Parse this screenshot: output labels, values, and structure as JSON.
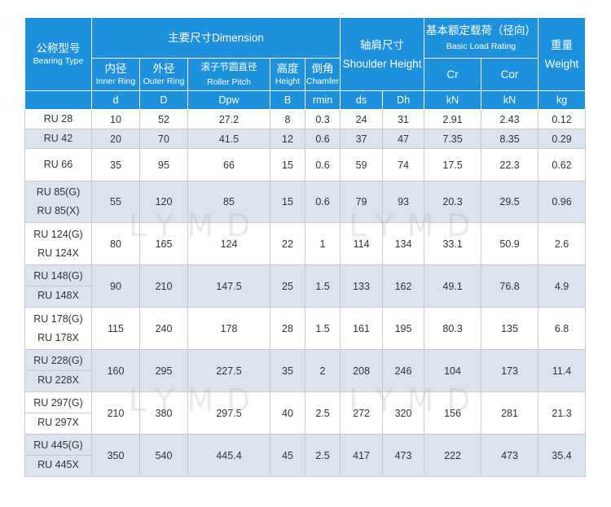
{
  "header": {
    "type_cn": "公称型号",
    "type_en": "Bearing Type",
    "dimension": "主要尺寸Dimension",
    "shoulder_cn": "轴肩尺寸",
    "shoulder_en": "Shoulder Height",
    "load_cn": "基本额定载荷（径向）",
    "load_en": "Basic Load Rating",
    "weight_cn": "重量",
    "weight_en": "Weight",
    "cols": [
      {
        "cn": "内径",
        "en": "Inner Ring"
      },
      {
        "cn": "外径",
        "en": "Outer Ring"
      },
      {
        "cn": "滚子节圆直径",
        "en": "Roller Pitch"
      },
      {
        "cn": "高度",
        "en": "Height"
      },
      {
        "cn": "倒角",
        "en": "Chamfer"
      }
    ],
    "cr": "Cr",
    "cor": "Cor",
    "units": [
      "d",
      "D",
      "Dpw",
      "B",
      "rmin",
      "ds",
      "Dh",
      "kN",
      "kN",
      "kg"
    ]
  },
  "rows": [
    {
      "types": [
        "RU 28"
      ],
      "d": "10",
      "D": "52",
      "Dpw": "27.2",
      "B": "8",
      "rmin": "0.3",
      "ds": "24",
      "Dh": "31",
      "Cr": "2.91",
      "Cor": "2.43",
      "kg": "0.12"
    },
    {
      "types": [
        "RU 42"
      ],
      "d": "20",
      "D": "70",
      "Dpw": "41.5",
      "B": "12",
      "rmin": "0.6",
      "ds": "37",
      "Dh": "47",
      "Cr": "7.35",
      "Cor": "8.35",
      "kg": "0.29"
    },
    {
      "types": [
        "RU 66"
      ],
      "d": "35",
      "D": "95",
      "Dpw": "66",
      "B": "15",
      "rmin": "0.6",
      "ds": "59",
      "Dh": "74",
      "Cr": "17.5",
      "Cor": "22.3",
      "kg": "0.62"
    },
    {
      "types": [
        "RU 85(G)",
        "RU 85(X)"
      ],
      "d": "55",
      "D": "120",
      "Dpw": "85",
      "B": "15",
      "rmin": "0.6",
      "ds": "79",
      "Dh": "93",
      "Cr": "20.3",
      "Cor": "29.5",
      "kg": "0.96"
    },
    {
      "types": [
        "RU 124(G)",
        "RU 124X"
      ],
      "d": "80",
      "D": "165",
      "Dpw": "124",
      "B": "22",
      "rmin": "1",
      "ds": "114",
      "Dh": "134",
      "Cr": "33.1",
      "Cor": "50.9",
      "kg": "2.6"
    },
    {
      "types": [
        "RU 148(G)",
        "RU 148X"
      ],
      "d": "90",
      "D": "210",
      "Dpw": "147.5",
      "B": "25",
      "rmin": "1.5",
      "ds": "133",
      "Dh": "162",
      "Cr": "49.1",
      "Cor": "76.8",
      "kg": "4.9"
    },
    {
      "types": [
        "RU 178(G)",
        "RU 178X"
      ],
      "d": "115",
      "D": "240",
      "Dpw": "178",
      "B": "28",
      "rmin": "1.5",
      "ds": "161",
      "Dh": "195",
      "Cr": "80.3",
      "Cor": "135",
      "kg": "6.8"
    },
    {
      "types": [
        "RU 228(G)",
        "RU 228X"
      ],
      "d": "160",
      "D": "295",
      "Dpw": "227.5",
      "B": "35",
      "rmin": "2",
      "ds": "208",
      "Dh": "246",
      "Cr": "104",
      "Cor": "173",
      "kg": "11.4"
    },
    {
      "types": [
        "RU 297(G)",
        "RU 297X"
      ],
      "d": "210",
      "D": "380",
      "Dpw": "297.5",
      "B": "40",
      "rmin": "2.5",
      "ds": "272",
      "Dh": "320",
      "Cr": "156",
      "Cor": "281",
      "kg": "21.3"
    },
    {
      "types": [
        "RU 445(G)",
        "RU 445X"
      ],
      "d": "350",
      "D": "540",
      "Dpw": "445.4",
      "B": "45",
      "rmin": "2.5",
      "ds": "417",
      "Dh": "473",
      "Cr": "222",
      "Cor": "473",
      "kg": "35.4"
    }
  ],
  "watermark": "LYMD"
}
